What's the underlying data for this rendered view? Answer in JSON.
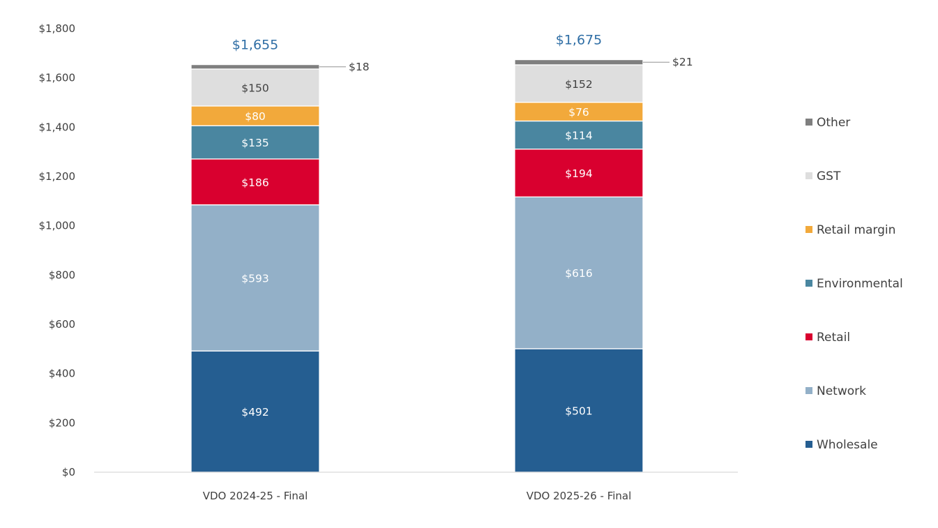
{
  "chart_data": {
    "type": "bar",
    "stacked": true,
    "categories": [
      "VDO 2024-25 - Final",
      "VDO 2025-26 - Final"
    ],
    "series": [
      {
        "name": "Wholesale",
        "values": [
          492,
          501
        ],
        "labels": [
          "$492",
          "$501"
        ],
        "color": "#255e91",
        "label_color": "#ffffff"
      },
      {
        "name": "Network",
        "values": [
          593,
          616
        ],
        "labels": [
          "$593",
          "$616"
        ],
        "color": "#93b0c8",
        "label_color": "#ffffff"
      },
      {
        "name": "Retail",
        "values": [
          186,
          194
        ],
        "labels": [
          "$186",
          "$194"
        ],
        "color": "#d9002f",
        "label_color": "#ffffff"
      },
      {
        "name": "Environmental",
        "values": [
          135,
          114
        ],
        "labels": [
          "$135",
          "$114"
        ],
        "color": "#4a86a0",
        "label_color": "#ffffff"
      },
      {
        "name": "Retail margin",
        "values": [
          80,
          76
        ],
        "labels": [
          "$80",
          "$76"
        ],
        "color": "#f2a93b",
        "label_color": "#ffffff"
      },
      {
        "name": "GST",
        "values": [
          150,
          152
        ],
        "labels": [
          "$150",
          "$152"
        ],
        "color": "#dedede",
        "label_color": "#404040"
      },
      {
        "name": "Other",
        "values": [
          18,
          21
        ],
        "labels": [
          "$18",
          "$21"
        ],
        "color": "#7f7f7f",
        "label_color": "#404040"
      }
    ],
    "totals": [
      "$1,655",
      "$1,675"
    ],
    "ylim": [
      0,
      1800
    ],
    "yticks": [
      0,
      200,
      400,
      600,
      800,
      1000,
      1200,
      1400,
      1600,
      1800
    ],
    "ytick_labels": [
      "$0",
      "$200",
      "$400",
      "$600",
      "$800",
      "$1,000",
      "$1,200",
      "$1,400",
      "$1,600",
      "$1,800"
    ],
    "legend_order": [
      "Other",
      "GST",
      "Retail margin",
      "Environmental",
      "Retail",
      "Network",
      "Wholesale"
    ],
    "legend_position": "right",
    "grid": false
  }
}
